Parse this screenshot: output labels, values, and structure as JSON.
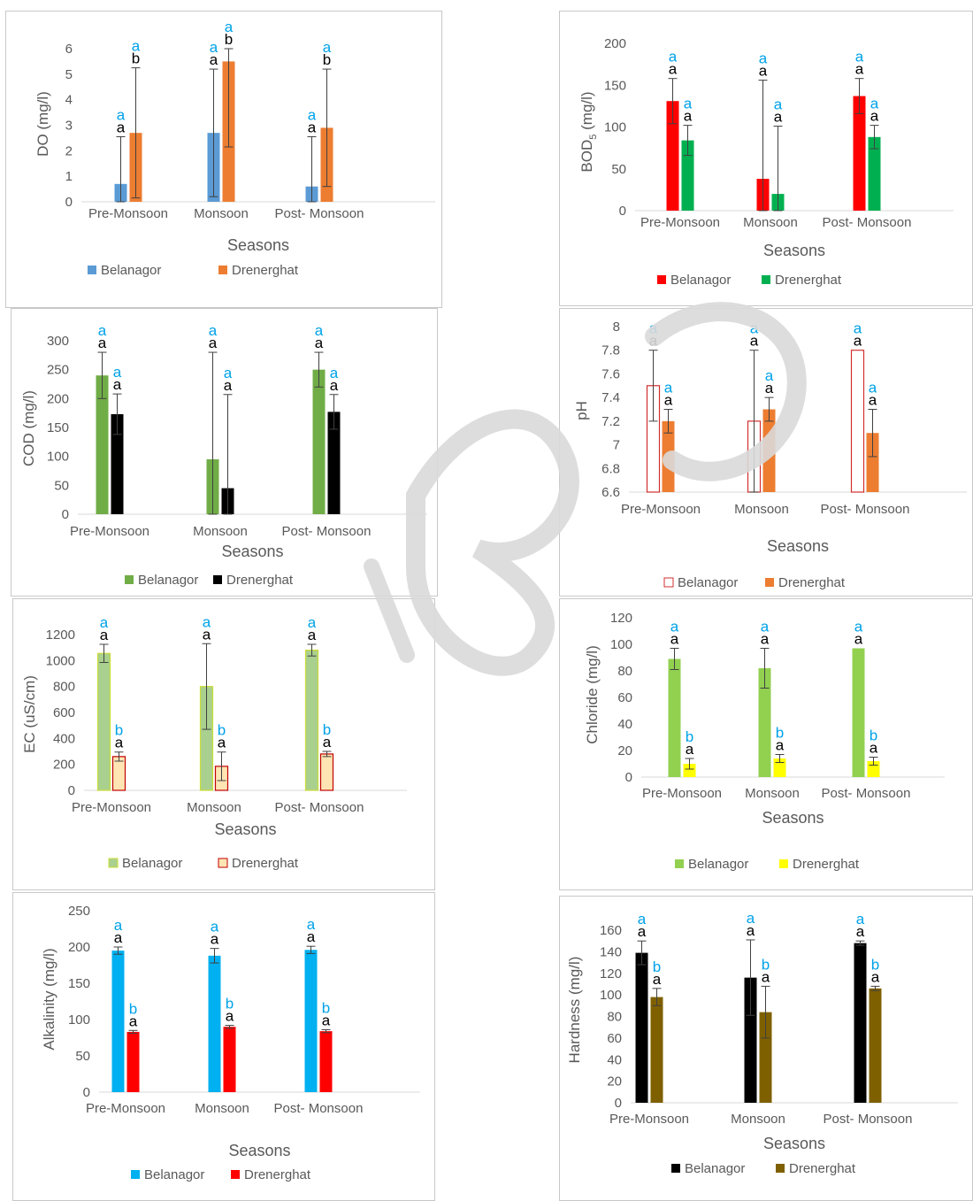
{
  "chart_data": [
    {
      "type": "bar",
      "categories": [
        "Pre-Monsoon",
        "Monsoon",
        "Post- Monsoon"
      ],
      "xlabel": "Seasons",
      "ylabel": "DO (mg/l)",
      "ylim": [
        0,
        6
      ],
      "yticks": [
        0,
        1,
        2,
        3,
        4,
        5,
        6
      ],
      "grid": false,
      "legend_position": "bottom",
      "series": [
        {
          "name": "Belanagor",
          "color": "#5b9bd5",
          "fill": "solid",
          "values": [
            0.7,
            2.7,
            0.6
          ],
          "errors": [
            1.85,
            2.5,
            1.95
          ],
          "letters": [
            "a",
            "a",
            "a"
          ],
          "cyan_letters": [
            "a",
            "a",
            "a"
          ]
        },
        {
          "name": "Drenerghat",
          "color": "#ed7d31",
          "fill": "solid",
          "values": [
            2.7,
            5.5,
            2.9
          ],
          "errors": [
            2.55,
            3.35,
            2.3
          ],
          "letters": [
            "b",
            "b",
            "b"
          ],
          "cyan_letters": [
            "a",
            "a",
            "a"
          ]
        }
      ]
    },
    {
      "type": "bar",
      "categories": [
        "Pre-Monsoon",
        "Monsoon",
        "Post- Monsoon"
      ],
      "xlabel": "Seasons",
      "ylabel": "BOD",
      "ylabel_sub": "5",
      "ylabel_tail": " (mg/l)",
      "ylim": [
        0,
        200
      ],
      "yticks": [
        0,
        50,
        100,
        150,
        200
      ],
      "grid": false,
      "legend_position": "bottom",
      "series": [
        {
          "name": "Belanagor",
          "color": "#ff0000",
          "fill": "solid",
          "values": [
            131,
            38,
            137
          ],
          "errors": [
            27,
            118,
            21
          ],
          "letters": [
            "a",
            "a",
            "a"
          ],
          "cyan_letters": [
            "a",
            "a",
            "a"
          ]
        },
        {
          "name": "Drenerghat",
          "color": "#00b050",
          "fill": "solid",
          "values": [
            84,
            20,
            88
          ],
          "errors": [
            18,
            81,
            14
          ],
          "letters": [
            "a",
            "a",
            "a"
          ],
          "cyan_letters": [
            "a",
            "a",
            "a"
          ]
        }
      ]
    },
    {
      "type": "bar",
      "categories": [
        "Pre-Monsoon",
        "Monsoon",
        "Post- Monsoon"
      ],
      "xlabel": "Seasons",
      "ylabel": "COD (mg/l)",
      "ylim": [
        0,
        300
      ],
      "yticks": [
        0,
        50,
        100,
        150,
        200,
        250,
        300
      ],
      "grid": false,
      "legend_position": "bottom",
      "series": [
        {
          "name": "Belanagor",
          "color": "#70ad47",
          "fill": "solid",
          "values": [
            240,
            95,
            250
          ],
          "errors": [
            40,
            185,
            30
          ],
          "letters": [
            "a",
            "a",
            "a"
          ],
          "cyan_letters": [
            "a",
            "a",
            "a"
          ]
        },
        {
          "name": "Drenerghat",
          "color": "#000000",
          "fill": "solid",
          "values": [
            173,
            45,
            177
          ],
          "errors": [
            35,
            162,
            30
          ],
          "letters": [
            "a",
            "a",
            "a"
          ],
          "cyan_letters": [
            "a",
            "a",
            "a"
          ]
        }
      ]
    },
    {
      "type": "bar",
      "categories": [
        "Pre-Monsoon",
        "Monsoon",
        "Post- Monsoon"
      ],
      "xlabel": "Seasons",
      "ylabel": "pH",
      "ylim": [
        6.6,
        8
      ],
      "yticks": [
        6.6,
        6.8,
        7,
        7.2,
        7.4,
        7.6,
        7.8,
        8
      ],
      "grid": false,
      "legend_position": "bottom",
      "series": [
        {
          "name": "Belanagor",
          "color": "#ffffff",
          "stroke": "#d32f2f",
          "fill": "outline",
          "values": [
            7.5,
            7.2,
            7.8
          ],
          "errors": [
            0.3,
            0.6,
            0
          ],
          "letters": [
            "a",
            "a",
            "a"
          ],
          "cyan_letters": [
            "a",
            "a",
            "a"
          ]
        },
        {
          "name": "Drenerghat",
          "color": "#ed7d31",
          "fill": "solid",
          "values": [
            7.2,
            7.3,
            7.1
          ],
          "errors": [
            0.1,
            0.1,
            0.2
          ],
          "letters": [
            "a",
            "a",
            "a"
          ],
          "cyan_letters": [
            "a",
            "a",
            "a"
          ]
        }
      ]
    },
    {
      "type": "bar",
      "categories": [
        "Pre-Monsoon",
        "Monsoon",
        "Post- Monsoon"
      ],
      "xlabel": "Seasons",
      "ylabel": "EC  (uS/cm)",
      "ylim": [
        0,
        1200
      ],
      "yticks": [
        0,
        200,
        400,
        600,
        800,
        1000,
        1200
      ],
      "grid": false,
      "legend_position": "bottom",
      "series": [
        {
          "name": "Belanagor",
          "color": "#a9d08e",
          "stroke": "#cddc39",
          "fill": "solid",
          "values": [
            1055,
            800,
            1080
          ],
          "errors": [
            70,
            330,
            45
          ],
          "letters": [
            "a",
            "a",
            "a"
          ],
          "cyan_letters": [
            "a",
            "a",
            "a"
          ]
        },
        {
          "name": "Drenerghat",
          "color": "#ffe5b4",
          "stroke": "#c00000",
          "fill": "solid",
          "values": [
            260,
            185,
            280
          ],
          "errors": [
            35,
            110,
            20
          ],
          "letters": [
            "a",
            "a",
            "a"
          ],
          "cyan_letters": [
            "b",
            "b",
            "b"
          ]
        }
      ]
    },
    {
      "type": "bar",
      "categories": [
        "Pre-Monsoon",
        "Monsoon",
        "Post- Monsoon"
      ],
      "xlabel": "Seasons",
      "ylabel": "Chloride (mg/l)",
      "ylim": [
        0,
        120
      ],
      "yticks": [
        0,
        20,
        40,
        60,
        80,
        100,
        120
      ],
      "grid": false,
      "legend_position": "bottom",
      "series": [
        {
          "name": "Belanagor",
          "color": "#92d050",
          "fill": "solid",
          "values": [
            89,
            82,
            97
          ],
          "errors": [
            8,
            15,
            0
          ],
          "letters": [
            "a",
            "a",
            "a"
          ],
          "cyan_letters": [
            "a",
            "a",
            "a"
          ]
        },
        {
          "name": "Drenerghat",
          "color": "#ffff00",
          "fill": "solid",
          "values": [
            10,
            14,
            12
          ],
          "errors": [
            4,
            3,
            3
          ],
          "letters": [
            "a",
            "a",
            "a"
          ],
          "cyan_letters": [
            "b",
            "b",
            "b"
          ]
        }
      ]
    },
    {
      "type": "bar",
      "categories": [
        "Pre-Monsoon",
        "Monsoon",
        "Post- Monsoon"
      ],
      "xlabel": "Seasons",
      "ylabel": "Alkalinity (mg/l)",
      "ylim": [
        0,
        250
      ],
      "yticks": [
        0,
        50,
        100,
        150,
        200,
        250
      ],
      "grid": false,
      "legend_position": "bottom",
      "series": [
        {
          "name": "Belanagor",
          "color": "#00b0f0",
          "fill": "solid",
          "values": [
            195,
            188,
            196
          ],
          "errors": [
            5,
            10,
            5
          ],
          "letters": [
            "a",
            "a",
            "a"
          ],
          "cyan_letters": [
            "a",
            "a",
            "a"
          ]
        },
        {
          "name": "Drenerghat",
          "color": "#ff0000",
          "fill": "solid",
          "values": [
            83,
            90,
            84
          ],
          "errors": [
            2,
            2,
            2
          ],
          "letters": [
            "a",
            "a",
            "a"
          ],
          "cyan_letters": [
            "b",
            "b",
            "b"
          ]
        }
      ]
    },
    {
      "type": "bar",
      "categories": [
        "Pre-Monsoon",
        "Monsoon",
        "Post- Monsoon"
      ],
      "xlabel": "Seasons",
      "ylabel": "Hardness  (mg/l)",
      "ylim": [
        0,
        160
      ],
      "yticks": [
        0,
        20,
        40,
        60,
        80,
        100,
        120,
        140,
        160
      ],
      "grid": false,
      "legend_position": "bottom",
      "series": [
        {
          "name": "Belanagor",
          "color": "#000000",
          "fill": "solid",
          "values": [
            139,
            116,
            148
          ],
          "errors": [
            11,
            35,
            2
          ],
          "letters": [
            "a",
            "a",
            "a"
          ],
          "cyan_letters": [
            "a",
            "a",
            "a"
          ]
        },
        {
          "name": "Drenerghat",
          "color": "#7f6000",
          "fill": "solid",
          "values": [
            98,
            84,
            106
          ],
          "errors": [
            8,
            24,
            2
          ],
          "letters": [
            "a",
            "a",
            "a"
          ],
          "cyan_letters": [
            "b",
            "b",
            "b"
          ]
        }
      ]
    }
  ],
  "colors": {
    "letter_black": "#000000",
    "letter_cyan": "#00a2e8",
    "axis": "#d9d9d9",
    "text": "#595959",
    "watermark": "#d9d9d9"
  }
}
